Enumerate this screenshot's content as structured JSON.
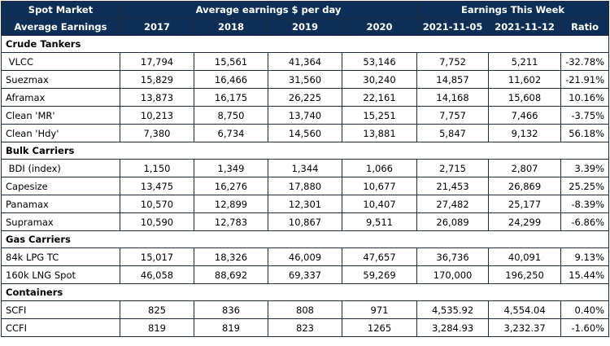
{
  "header": {
    "spot_market": "Spot Market",
    "avg_earnings_label": "Average Earnings",
    "avg_per_day": "Average earnings $ per day",
    "this_week": "Earnings This Week",
    "cols": [
      "2017",
      "2018",
      "2019",
      "2020",
      "2021-11-05",
      "2021-11-12",
      "Ratio"
    ]
  },
  "sections": [
    {
      "title": "Crude Tankers",
      "rows": [
        {
          "label": " VLCC",
          "values": [
            "17,794",
            "15,561",
            "41,364",
            "53,146",
            "7,752",
            "5,211",
            "-32.78%"
          ]
        },
        {
          "label": "Suezmax",
          "values": [
            "15,829",
            "16,466",
            "31,560",
            "30,240",
            "14,857",
            "11,602",
            "-21.91%"
          ]
        },
        {
          "label": "Aframax",
          "values": [
            "13,873",
            "16,175",
            "26,225",
            "22,161",
            "14,168",
            "15,608",
            "10.16%"
          ]
        },
        {
          "label": "Clean 'MR'",
          "values": [
            "10,213",
            "8,750",
            "13,740",
            "15,251",
            "7,757",
            "7,466",
            "-3.75%"
          ]
        },
        {
          "label": "Clean 'Hdy'",
          "values": [
            "7,380",
            "6,734",
            "14,560",
            "13,881",
            "5,847",
            "9,132",
            "56.18%"
          ]
        }
      ]
    },
    {
      "title": "Bulk Carriers",
      "rows": [
        {
          "label": " BDI (index)",
          "values": [
            "1,150",
            "1,349",
            "1,344",
            "1,066",
            "2,715",
            "2,807",
            "3.39%"
          ]
        },
        {
          "label": "Capesize",
          "values": [
            "13,475",
            "16,276",
            "17,880",
            "10,677",
            "21,453",
            "26,869",
            "25.25%"
          ]
        },
        {
          "label": "Panamax",
          "values": [
            "10,570",
            "12,899",
            "12,301",
            "10,407",
            "27,482",
            "25,177",
            "-8.39%"
          ]
        },
        {
          "label": "Supramax",
          "values": [
            "10,590",
            "12,783",
            "10,867",
            "9,511",
            "26,089",
            "24,299",
            "-6.86%"
          ]
        }
      ]
    },
    {
      "title": "Gas Carriers",
      "rows": [
        {
          "label": "84k LPG TC",
          "values": [
            "15,017",
            "18,326",
            "46,009",
            "47,657",
            "36,736",
            "40,091",
            "9.13%"
          ]
        },
        {
          "label": "160k LNG Spot",
          "values": [
            "46,058",
            "88,692",
            "69,337",
            "59,269",
            "170,000",
            "196,250",
            "15.44%"
          ]
        }
      ]
    },
    {
      "title": "Containers",
      "rows": [
        {
          "label": "SCFI",
          "values": [
            "825",
            "836",
            "808",
            "971",
            "4,535.92",
            "4,554.04",
            "0.40%"
          ]
        },
        {
          "label": "CCFI",
          "values": [
            "819",
            "819",
            "823",
            "1265",
            "3,284.93",
            "3,232.37",
            "-1.60%"
          ]
        }
      ]
    }
  ]
}
